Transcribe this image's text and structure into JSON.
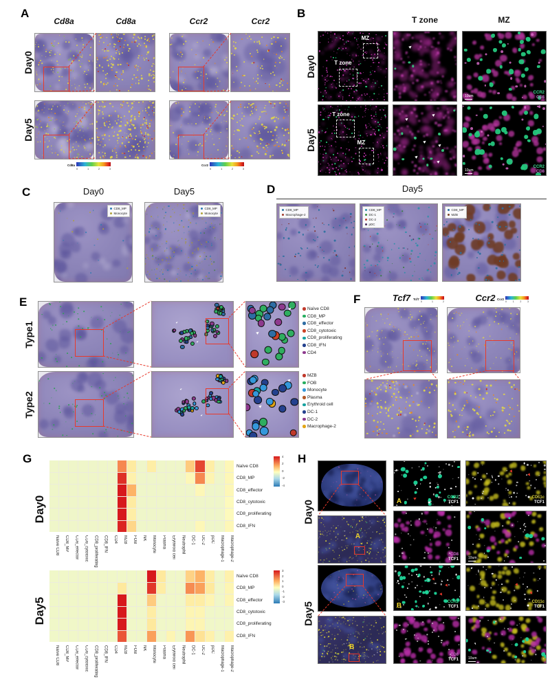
{
  "panelA": {
    "label": "A",
    "col_titles": [
      "Cd8a",
      "Cd8a",
      "Ccr2",
      "Ccr2"
    ],
    "row_labels": [
      "Day0",
      "Day5"
    ],
    "colorbars": [
      {
        "label": "Cd8a",
        "ticks": [
          "0",
          "1",
          "2",
          "3"
        ]
      },
      {
        "label": "Ccr2",
        "ticks": [
          "0",
          "1",
          "2",
          "3"
        ]
      }
    ]
  },
  "panelB": {
    "label": "B",
    "col_titles": [
      "T zone",
      "MZ"
    ],
    "row_labels": [
      "Day0",
      "Day5"
    ],
    "regions": {
      "day0": [
        "MZ",
        "T zone"
      ],
      "day5": [
        "T zone",
        "MZ"
      ]
    },
    "markers": {
      "ccr2": {
        "label": "CCR2",
        "color": "#3ddf95"
      },
      "cd8": {
        "label": "CD8",
        "color": "#d06fd0"
      },
      "scale": "10um"
    }
  },
  "panelC": {
    "label": "C",
    "col_titles": [
      "Day0",
      "Day5"
    ],
    "legend": [
      {
        "label": "CD8_MP",
        "color": "#2d7bb2"
      },
      {
        "label": "Monocyte",
        "color": "#b0a23a"
      }
    ]
  },
  "panelD": {
    "label": "D",
    "title": "Day5",
    "legends": [
      [
        {
          "label": "CD8_MP",
          "color": "#2a6f9e"
        },
        {
          "label": "Macrophage-2",
          "color": "#a03a2a"
        }
      ],
      [
        {
          "label": "CD8_MP",
          "color": "#2a8fa8"
        },
        {
          "label": "DC-1",
          "color": "#3a8f3f"
        },
        {
          "label": "DC-2",
          "color": "#c0392b"
        },
        {
          "label": "pDC",
          "color": "#4a2c5e"
        }
      ],
      [
        {
          "label": "CD8_MP",
          "color": "#2a6f9e"
        },
        {
          "label": "MZB",
          "color": "#7a4426"
        }
      ]
    ]
  },
  "panelE": {
    "label": "E",
    "row_labels": [
      "Type1",
      "Type2"
    ],
    "legend1": [
      {
        "label": "Naïve CD8",
        "color": "#c0392b"
      },
      {
        "label": "CD8_MP",
        "color": "#27ae60"
      },
      {
        "label": "CD8_effector",
        "color": "#2e6da4"
      },
      {
        "label": "CD8_cytotoxic",
        "color": "#cc4125"
      },
      {
        "label": "CD8_proliferating",
        "color": "#17a2a0"
      },
      {
        "label": "CD8_IFN",
        "color": "#24418e"
      },
      {
        "label": "CD4",
        "color": "#8e3a8e"
      }
    ],
    "legend2": [
      {
        "label": "MZB",
        "color": "#c0392b"
      },
      {
        "label": "FOB",
        "color": "#27ae60"
      },
      {
        "label": "Monocyte",
        "color": "#3498db"
      },
      {
        "label": "Plasma",
        "color": "#b35a2a"
      },
      {
        "label": "Erythroid cell",
        "color": "#17a2a0"
      },
      {
        "label": "DC-1",
        "color": "#24418e"
      },
      {
        "label": "DC-2",
        "color": "#8e3a8e"
      },
      {
        "label": "Macrophage-2",
        "color": "#e2a516"
      }
    ]
  },
  "panelF": {
    "label": "F",
    "col_titles": [
      "Tcf7",
      "Ccr2"
    ],
    "colorbars": [
      {
        "label": "Tcf7",
        "ticks": [
          "0",
          "1",
          "2"
        ]
      },
      {
        "label": "Ccr2",
        "ticks": [
          "0",
          "1",
          "2",
          "3"
        ]
      }
    ]
  },
  "panelG": {
    "label": "G"
  },
  "panelH": {
    "label": "H",
    "rows": [
      {
        "label": "Day0",
        "region": "A"
      },
      {
        "label": "Day5",
        "region": "B"
      }
    ],
    "channels": {
      "ccr2": {
        "label": "CCR2",
        "color": "#3ddf95"
      },
      "cd11c": {
        "label": "CD11c",
        "color": "#d8cf3a"
      },
      "cd8": {
        "label": "CD8",
        "color": "#d06fd0"
      },
      "tcf1": {
        "label": "TCF1",
        "color": "#ffffff"
      }
    },
    "scale": "10um"
  },
  "chart_data": [
    {
      "type": "heatmap",
      "title": "Day0",
      "rows": [
        "Naïve CD8",
        "CD8_MP",
        "CD8_effector",
        "CD8_cytotoxic",
        "CD8_proliferating",
        "CD8_IFN"
      ],
      "columns": [
        "Naïve CD8",
        "CD8_MP",
        "CD8_effector",
        "CD8_cytotoxic",
        "CD8_proliferating",
        "CD8_IFN",
        "CD4",
        "MZB",
        "FOB",
        "NK",
        "Monocyte",
        "Plasma",
        "Erythroid cell",
        "Neutrophil",
        "DC-1",
        "DC-2",
        "pDC",
        "Macrophage-1",
        "Macrophage-2"
      ],
      "values": [
        [
          -0.3,
          -0.3,
          -0.3,
          -0.3,
          -0.3,
          -0.3,
          -0.3,
          2.2,
          0.6,
          -0.3,
          0.5,
          -0.3,
          -0.3,
          -0.3,
          1.2,
          3.2,
          0.5,
          -0.3,
          0.2
        ],
        [
          -0.3,
          -0.3,
          -0.3,
          -0.3,
          -0.3,
          -0.3,
          -0.3,
          3.6,
          0.4,
          -0.3,
          -0.3,
          -0.3,
          -0.3,
          -0.3,
          0.2,
          2.2,
          0.3,
          -0.3,
          0.2
        ],
        [
          -0.3,
          -0.3,
          -0.3,
          -0.3,
          -0.3,
          -0.3,
          -0.3,
          4.0,
          1.6,
          -0.3,
          -0.3,
          -0.3,
          -0.3,
          -0.3,
          -0.3,
          0.2,
          -0.3,
          -0.3,
          0.2
        ],
        [
          -0.3,
          -0.3,
          -0.3,
          -0.3,
          -0.3,
          -0.3,
          -0.3,
          4.0,
          0.6,
          -0.3,
          -0.3,
          -0.3,
          -0.3,
          -0.3,
          -0.3,
          -0.3,
          -0.3,
          -0.3,
          0.1
        ],
        [
          -0.3,
          -0.3,
          -0.3,
          -0.3,
          -0.3,
          -0.3,
          -0.3,
          4.0,
          0.5,
          -0.3,
          -0.3,
          -0.3,
          -0.3,
          -0.3,
          -0.3,
          -0.3,
          -0.3,
          -0.3,
          0.1
        ],
        [
          -0.3,
          -0.3,
          -0.3,
          -0.3,
          -0.3,
          -0.3,
          -0.3,
          3.8,
          1.0,
          -0.3,
          -0.3,
          -0.3,
          -0.3,
          -0.3,
          -0.3,
          0.2,
          -0.3,
          -0.3,
          0.2
        ]
      ],
      "scale": {
        "min": -4,
        "max": 4,
        "ticks": [
          "4",
          "2",
          "0",
          "-2",
          "-4"
        ]
      },
      "legend_position": "right",
      "grid": true
    },
    {
      "type": "heatmap",
      "title": "Day5",
      "rows": [
        "Naïve CD8",
        "CD8_MP",
        "CD8_effector",
        "CD8_cytotoxic",
        "CD8_proliferating",
        "CD8_IFN"
      ],
      "columns": [
        "Naïve CD8",
        "CD8_MP",
        "CD8_effector",
        "CD8_cytotoxic",
        "CD8_proliferating",
        "CD8_IFN",
        "CD4",
        "MZB",
        "FOB",
        "NK",
        "Monocyte",
        "Plasma",
        "Erythroid cell",
        "Neutrophil",
        "DC-1",
        "DC-2",
        "pDC",
        "Macrophage-1",
        "Macrophage-2"
      ],
      "values": [
        [
          -0.2,
          -0.2,
          -0.2,
          -0.2,
          -0.2,
          -0.2,
          -0.2,
          -0.2,
          -0.2,
          -0.2,
          3.0,
          0.5,
          -0.2,
          -0.2,
          0.8,
          1.2,
          0.4,
          -0.2,
          0.3
        ],
        [
          -0.2,
          -0.2,
          -0.2,
          -0.2,
          -0.2,
          -0.2,
          -0.2,
          0.5,
          -0.2,
          -0.2,
          2.6,
          0.4,
          -0.2,
          -0.2,
          1.6,
          1.4,
          0.5,
          -0.2,
          0.2
        ],
        [
          -0.2,
          -0.2,
          -0.2,
          -0.2,
          -0.2,
          -0.2,
          -0.2,
          3.0,
          -0.2,
          -0.2,
          0.9,
          -0.2,
          -0.2,
          -0.2,
          0.4,
          0.4,
          0.2,
          -0.2,
          0.2
        ],
        [
          -0.2,
          -0.2,
          -0.2,
          -0.2,
          -0.2,
          -0.2,
          -0.2,
          3.0,
          -0.2,
          -0.2,
          0.4,
          -0.2,
          -0.2,
          -0.2,
          0.2,
          0.2,
          -0.2,
          -0.2,
          -0.2
        ],
        [
          -0.2,
          -0.2,
          -0.2,
          -0.2,
          -0.2,
          -0.2,
          -0.2,
          3.0,
          -0.2,
          -0.2,
          0.5,
          -0.2,
          -0.2,
          -0.2,
          0.2,
          0.2,
          -0.2,
          -0.2,
          -0.2
        ],
        [
          -0.2,
          -0.2,
          -0.2,
          -0.2,
          -0.2,
          -0.2,
          -0.2,
          2.2,
          -0.2,
          -0.2,
          1.4,
          -0.2,
          0.2,
          -0.2,
          1.5,
          0.6,
          0.3,
          -0.2,
          0.3
        ]
      ],
      "scale": {
        "min": -3,
        "max": 3,
        "ticks": [
          "3",
          "2",
          "1",
          "0",
          "-1",
          "-2",
          "-3"
        ]
      },
      "legend_position": "right",
      "grid": true
    }
  ]
}
